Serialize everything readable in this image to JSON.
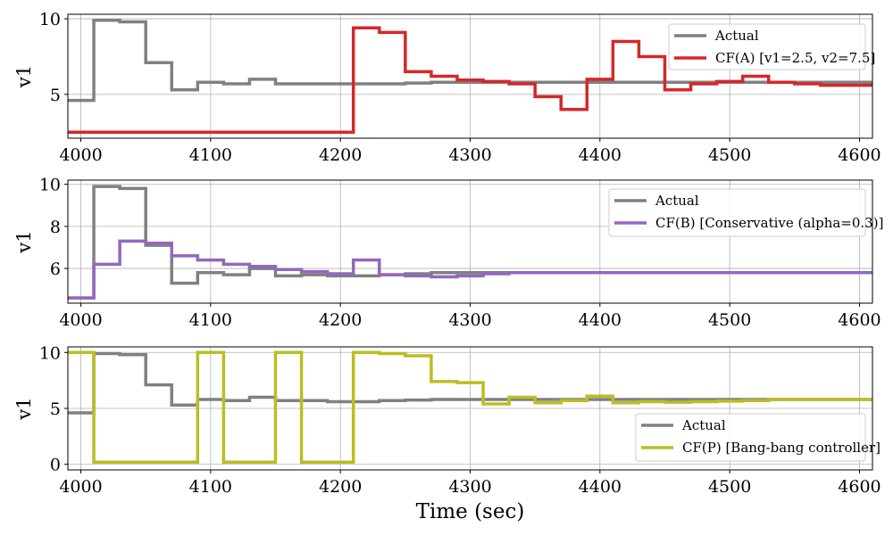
{
  "chart_data": [
    {
      "type": "line",
      "drawstyle": "steps-post",
      "title": "",
      "xlabel": "",
      "ylabel": "v1",
      "xlim": [
        3990,
        4610
      ],
      "ylim": [
        2.1,
        10.3
      ],
      "xticks": [
        4000,
        4100,
        4200,
        4300,
        4400,
        4500,
        4600
      ],
      "yticks": [
        5,
        10
      ],
      "grid": true,
      "legend_position": "top-right",
      "series": [
        {
          "name": "Actual",
          "color": "#808080",
          "x": [
            3990,
            4010,
            4030,
            4050,
            4070,
            4090,
            4110,
            4130,
            4150,
            4170,
            4190,
            4210,
            4230,
            4250,
            4270,
            4290,
            4310,
            4330,
            4350,
            4370,
            4390,
            4410,
            4430,
            4450,
            4470,
            4490,
            4510,
            4530,
            4550,
            4570,
            4590,
            4610
          ],
          "y": [
            4.6,
            9.9,
            9.8,
            7.1,
            5.3,
            5.8,
            5.7,
            6.0,
            5.7,
            5.7,
            5.7,
            5.7,
            5.7,
            5.75,
            5.8,
            5.8,
            5.8,
            5.8,
            5.8,
            5.8,
            5.8,
            5.8,
            5.8,
            5.8,
            5.8,
            5.8,
            5.8,
            5.8,
            5.8,
            5.8,
            5.8,
            5.8
          ]
        },
        {
          "name": "CF(A) [v1=2.5, v2=7.5]",
          "color": "#d62728",
          "x": [
            3990,
            4010,
            4030,
            4050,
            4070,
            4090,
            4110,
            4130,
            4150,
            4170,
            4190,
            4210,
            4230,
            4250,
            4270,
            4290,
            4310,
            4330,
            4350,
            4370,
            4390,
            4410,
            4430,
            4450,
            4470,
            4490,
            4510,
            4530,
            4550,
            4570,
            4590,
            4610
          ],
          "y": [
            2.5,
            2.5,
            2.5,
            2.5,
            2.5,
            2.5,
            2.5,
            2.5,
            2.5,
            2.5,
            2.5,
            9.4,
            9.1,
            6.5,
            6.2,
            5.95,
            5.85,
            5.7,
            4.85,
            4.0,
            6.0,
            8.5,
            7.5,
            5.3,
            5.7,
            5.85,
            6.2,
            5.8,
            5.7,
            5.6,
            5.6,
            5.6
          ]
        }
      ]
    },
    {
      "type": "line",
      "drawstyle": "steps-post",
      "title": "",
      "xlabel": "",
      "ylabel": "v1",
      "xlim": [
        3990,
        4610
      ],
      "ylim": [
        4.35,
        10.2
      ],
      "xticks": [
        4000,
        4100,
        4200,
        4300,
        4400,
        4500,
        4600
      ],
      "yticks": [
        6,
        8,
        10
      ],
      "grid": true,
      "legend_position": "top-right",
      "series": [
        {
          "name": "Actual",
          "color": "#808080",
          "x": [
            3990,
            4010,
            4030,
            4050,
            4070,
            4090,
            4110,
            4130,
            4150,
            4170,
            4190,
            4210,
            4230,
            4250,
            4270,
            4290,
            4310,
            4330,
            4350,
            4370,
            4390,
            4410,
            4430,
            4450,
            4470,
            4490,
            4510,
            4530,
            4550,
            4570,
            4590,
            4610
          ],
          "y": [
            4.6,
            9.9,
            9.8,
            7.1,
            5.3,
            5.8,
            5.7,
            6.0,
            5.65,
            5.7,
            5.65,
            5.65,
            5.7,
            5.75,
            5.8,
            5.8,
            5.8,
            5.8,
            5.8,
            5.8,
            5.8,
            5.8,
            5.8,
            5.8,
            5.8,
            5.8,
            5.8,
            5.8,
            5.8,
            5.8,
            5.8,
            5.8
          ]
        },
        {
          "name": "CF(B) [Conservative (alpha=0.3)]",
          "color": "#9467bd",
          "x": [
            3990,
            4010,
            4030,
            4050,
            4070,
            4090,
            4110,
            4130,
            4150,
            4170,
            4190,
            4210,
            4230,
            4250,
            4270,
            4290,
            4310,
            4330,
            4350,
            4370,
            4390,
            4410,
            4430,
            4450,
            4470,
            4490,
            4510,
            4530,
            4550,
            4570,
            4590,
            4610
          ],
          "y": [
            4.6,
            6.2,
            7.3,
            7.2,
            6.6,
            6.4,
            6.2,
            6.1,
            5.95,
            5.85,
            5.75,
            6.4,
            5.7,
            5.65,
            5.6,
            5.65,
            5.75,
            5.8,
            5.8,
            5.8,
            5.8,
            5.8,
            5.8,
            5.8,
            5.8,
            5.8,
            5.8,
            5.8,
            5.8,
            5.8,
            5.8,
            5.8
          ]
        }
      ]
    },
    {
      "type": "line",
      "drawstyle": "steps-post",
      "title": "",
      "xlabel": "Time (sec)",
      "ylabel": "v1",
      "xlim": [
        3990,
        4610
      ],
      "ylim": [
        -0.5,
        10.5
      ],
      "xticks": [
        4000,
        4100,
        4200,
        4300,
        4400,
        4500,
        4600
      ],
      "yticks": [
        0,
        5,
        10
      ],
      "grid": true,
      "legend_position": "lower-right",
      "series": [
        {
          "name": "Actual",
          "color": "#808080",
          "x": [
            3990,
            4010,
            4030,
            4050,
            4070,
            4090,
            4110,
            4130,
            4150,
            4170,
            4190,
            4210,
            4230,
            4250,
            4270,
            4290,
            4310,
            4330,
            4350,
            4370,
            4390,
            4410,
            4430,
            4450,
            4470,
            4490,
            4510,
            4530,
            4550,
            4570,
            4590,
            4610
          ],
          "y": [
            4.6,
            9.9,
            9.8,
            7.1,
            5.3,
            5.8,
            5.7,
            6.0,
            5.7,
            5.7,
            5.6,
            5.6,
            5.7,
            5.75,
            5.8,
            5.8,
            5.8,
            5.8,
            5.8,
            5.8,
            5.8,
            5.8,
            5.8,
            5.8,
            5.8,
            5.8,
            5.8,
            5.8,
            5.8,
            5.8,
            5.8,
            5.8
          ]
        },
        {
          "name": "CF(P) [Bang-bang controller]",
          "color": "#bcbd22",
          "x": [
            3990,
            4010,
            4030,
            4050,
            4070,
            4090,
            4110,
            4130,
            4150,
            4170,
            4190,
            4210,
            4230,
            4250,
            4270,
            4290,
            4310,
            4330,
            4350,
            4370,
            4390,
            4410,
            4430,
            4450,
            4470,
            4490,
            4510,
            4530,
            4550,
            4570,
            4590,
            4610
          ],
          "y": [
            10.0,
            0.2,
            0.2,
            0.2,
            0.2,
            10.0,
            0.2,
            0.2,
            10.0,
            0.2,
            0.2,
            10.0,
            9.9,
            9.7,
            7.4,
            7.3,
            5.4,
            6.0,
            5.5,
            5.7,
            6.1,
            5.5,
            5.6,
            5.55,
            5.6,
            5.65,
            5.7,
            5.8,
            5.8,
            5.8,
            5.8,
            5.8
          ]
        }
      ]
    }
  ]
}
